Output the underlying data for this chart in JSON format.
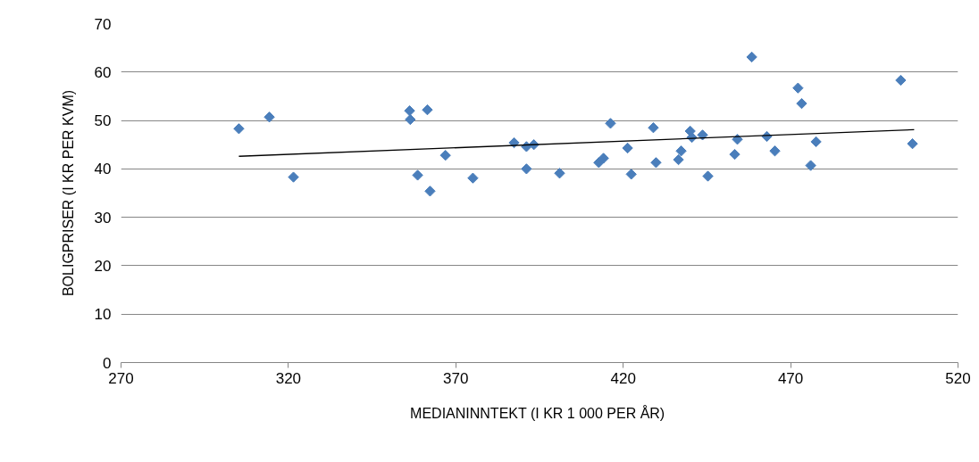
{
  "chart_data": {
    "type": "scatter",
    "xlabel": "MEDIANINNTEKT  (I KR 1 000 PER ÅR)",
    "ylabel": "BOLIGPRISER (I KR PER KVM)",
    "xlim": [
      270,
      520
    ],
    "xticks": [
      270,
      320,
      370,
      420,
      470,
      520
    ],
    "ylim": [
      0,
      70
    ],
    "yticks": [
      0,
      10,
      20,
      30,
      40,
      50,
      60,
      70
    ],
    "grid": "y",
    "series": [
      {
        "marker": "diamond",
        "color": "#4a7ebb",
        "x": [
          305.2,
          314.3,
          321.5,
          356.2,
          356.4,
          358.6,
          361.5,
          362.3,
          366.9,
          375.1,
          387.4,
          391.1,
          393.3,
          391.1,
          401.0,
          412.7,
          414.1,
          416.2,
          421.3,
          422.4,
          429.0,
          429.8,
          436.5,
          437.3,
          440.0,
          440.5,
          443.7,
          445.3,
          453.3,
          454.1,
          458.4,
          462.9,
          465.3,
          472.2,
          473.3,
          476.0,
          477.6,
          502.9,
          506.4
        ],
        "values": [
          48.3,
          50.7,
          38.3,
          52.0,
          50.2,
          38.7,
          52.2,
          35.4,
          42.8,
          38.1,
          45.4,
          44.6,
          45.0,
          40.0,
          39.1,
          41.3,
          42.2,
          49.4,
          44.3,
          38.9,
          48.5,
          41.3,
          41.9,
          43.7,
          47.8,
          46.5,
          47.0,
          38.5,
          43.0,
          46.1,
          63.1,
          46.7,
          43.7,
          56.7,
          53.5,
          40.7,
          45.6,
          58.3,
          45.2
        ]
      },
      {
        "type": "line",
        "line_style": "solid",
        "color": "#000000",
        "x": [
          305.2,
          506.9
        ],
        "values": [
          42.6,
          48.1
        ]
      }
    ]
  }
}
